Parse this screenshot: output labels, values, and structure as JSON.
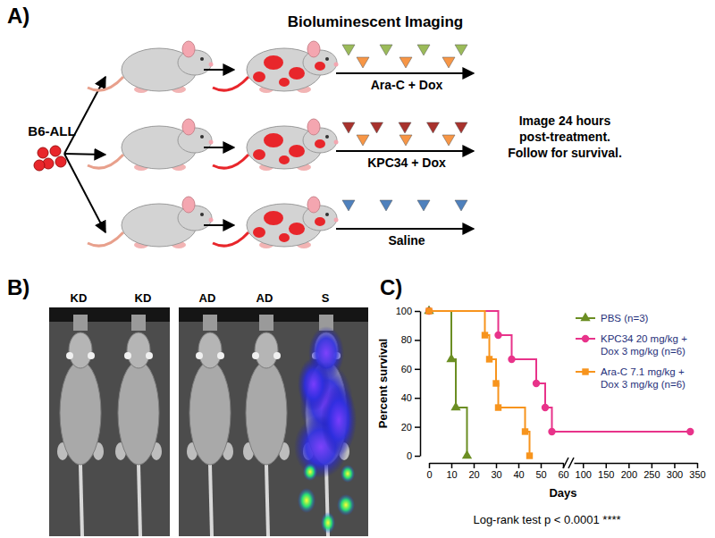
{
  "panel_a": {
    "label": "A)",
    "title": "Bioluminescent Imaging",
    "cells": "B6-ALL",
    "treatments": [
      "Ara-C + Dox",
      "KPC34 + Dox",
      "Saline"
    ],
    "followup": [
      "Image 24 hours",
      "post-treatment.",
      "Follow for survival."
    ]
  },
  "panel_b": {
    "label": "B)",
    "groups": [
      "KD",
      "KD",
      "AD",
      "AD",
      "S"
    ]
  },
  "chart_data": {
    "panel_label": "C)",
    "type": "step",
    "x_label": "Days",
    "y_label": "Percent survival",
    "xlim": [
      [
        0,
        60
      ],
      [
        80,
        350
      ]
    ],
    "xticks": [
      0,
      10,
      20,
      30,
      40,
      50,
      60,
      100,
      150,
      200,
      250,
      300,
      350
    ],
    "ylim": [
      0,
      100
    ],
    "yticks": [
      0,
      20,
      40,
      60,
      80,
      100
    ],
    "legend": "top-right",
    "annotations": [
      "Log-rank test p < 0.0001 ****"
    ],
    "series": [
      {
        "name": "PBS (n=3)",
        "color": "#6b8e23",
        "marker": "triangle",
        "x": [
          0,
          10,
          12,
          17
        ],
        "values": [
          100,
          66.7,
          33.3,
          0
        ]
      },
      {
        "name": "KPC34 20 mg/kg + Dox 3 mg/kg (n=6)",
        "color": "#e8338a",
        "marker": "circle",
        "x": [
          0,
          31,
          37,
          48,
          52,
          55,
          335
        ],
        "values": [
          100,
          83.3,
          66.7,
          50,
          33.3,
          16.7,
          16.7
        ]
      },
      {
        "name": "Ara-C 7.1 mg/kg + Dox 3 mg/kg (n=6)",
        "color": "#f7941d",
        "marker": "square",
        "x": [
          0,
          25,
          27,
          30,
          31,
          43,
          45
        ],
        "values": [
          100,
          83.3,
          66.7,
          50,
          33.3,
          16.7,
          0
        ]
      }
    ]
  }
}
